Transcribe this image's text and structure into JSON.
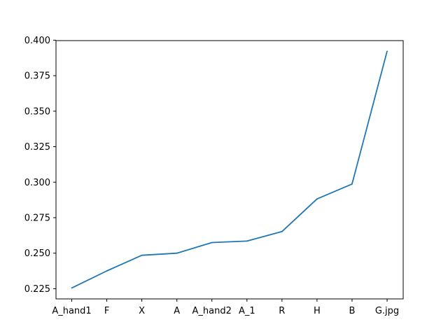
{
  "chart_data": {
    "type": "line",
    "title": "",
    "xlabel": "",
    "ylabel": "",
    "categories": [
      "A_hand1",
      "F",
      "X",
      "A",
      "A_hand2",
      "A_1",
      "R",
      "H",
      "B",
      "G.jpg"
    ],
    "series": [
      {
        "values": [
          0.2255,
          0.2375,
          0.2485,
          0.25,
          0.2575,
          0.2585,
          0.2652,
          0.2882,
          0.2987,
          0.3922
        ],
        "color": "#1f77b4"
      }
    ],
    "ylim": [
      0.2178,
      0.3997
    ],
    "yticks": [
      "0.225",
      "0.250",
      "0.275",
      "0.300",
      "0.325",
      "0.350",
      "0.375",
      "0.400"
    ],
    "grid": false,
    "legend": "none"
  }
}
